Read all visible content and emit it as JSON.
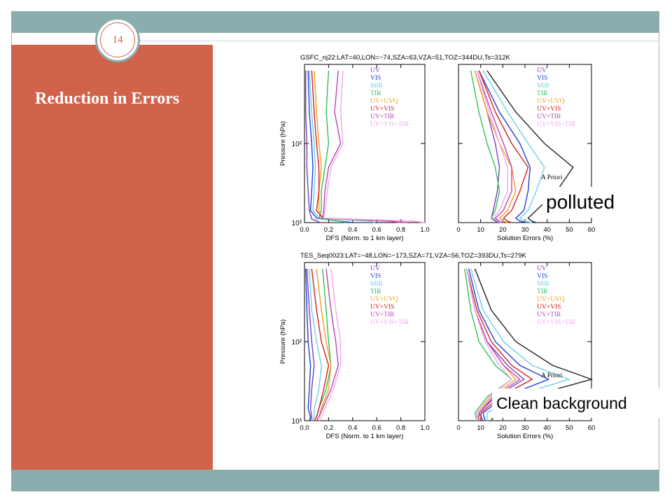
{
  "slide": {
    "number": "14",
    "title": "Reduction in Errors",
    "annotations": {
      "polluted": "polluted",
      "clean": "Clean background"
    }
  },
  "colors": {
    "sidebar": "#d0634a",
    "bars": "#8aaeae",
    "UV": "#7b3fb8",
    "VIS": "#1f3fd6",
    "MIR": "#6fcfe8",
    "TIR": "#2ec25a",
    "UV+UVQ": "#f0a020",
    "UV+VIS": "#d62020",
    "UV+TIR": "#b845b0",
    "UV+VIS+TIR": "#f3a6ee",
    "APriori": "#222222"
  },
  "chart_data": [
    {
      "type": "line",
      "title": "GSFC_nj22:LAT=40,LON=−74,SZA=63,VZA=51,TOZ=344DU,Ts=312K",
      "xlabel": "DFS (Norm. to 1 km layer)",
      "ylabel": "Pressure (hPa)",
      "xlim": [
        0.0,
        1.0
      ],
      "ylim": [
        1000,
        10
      ],
      "ylog": true,
      "xticks": [
        "0.0",
        "0.2",
        "0.4",
        "0.6",
        "0.8",
        "1.0"
      ],
      "yticks": [
        "10²",
        "10³"
      ],
      "legend": [
        "UV",
        "VIS",
        "MIR",
        "TIR",
        "UV+UVQ",
        "UV+VIS",
        "UV+TIR",
        "UV+VIS+TIR"
      ],
      "legend_position": "top-right",
      "series": [
        {
          "name": "UV",
          "color": "#7b3fb8",
          "x": [
            0.01,
            0.01,
            0.02,
            0.02,
            0.03,
            0.04,
            0.06,
            0.12,
            0.12
          ],
          "y": [
            12,
            40,
            100,
            200,
            400,
            700,
            900,
            980,
            1000
          ]
        },
        {
          "name": "VIS",
          "color": "#1f3fd6",
          "x": [
            0.03,
            0.04,
            0.06,
            0.07,
            0.06,
            0.05,
            0.1,
            0.3,
            0.4
          ],
          "y": [
            12,
            40,
            100,
            200,
            400,
            700,
            880,
            960,
            1000
          ]
        },
        {
          "name": "MIR",
          "color": "#6fcfe8",
          "x": [
            0.04,
            0.06,
            0.08,
            0.09,
            0.08,
            0.07,
            0.12,
            0.55,
            0.58
          ],
          "y": [
            12,
            40,
            100,
            200,
            400,
            700,
            880,
            960,
            1000
          ]
        },
        {
          "name": "TIR",
          "color": "#2ec25a",
          "x": [
            0.2,
            0.18,
            0.2,
            0.17,
            0.14,
            0.14,
            0.12,
            0.3,
            0.35
          ],
          "y": [
            12,
            40,
            100,
            200,
            400,
            700,
            880,
            960,
            1000
          ]
        },
        {
          "name": "UV+UVQ",
          "color": "#f0a020",
          "x": [
            0.08,
            0.1,
            0.12,
            0.14,
            0.12,
            0.12,
            0.15,
            0.7,
            0.8
          ],
          "y": [
            12,
            40,
            100,
            200,
            400,
            700,
            880,
            960,
            1000
          ]
        },
        {
          "name": "UV+VIS",
          "color": "#d62020",
          "x": [
            0.06,
            0.08,
            0.1,
            0.12,
            0.12,
            0.1,
            0.15,
            0.9,
            1.0
          ],
          "y": [
            12,
            40,
            100,
            200,
            400,
            700,
            880,
            960,
            1000
          ]
        },
        {
          "name": "UV+TIR",
          "color": "#b845b0",
          "x": [
            0.28,
            0.25,
            0.3,
            0.2,
            0.17,
            0.16,
            0.15,
            0.7,
            0.85
          ],
          "y": [
            12,
            40,
            100,
            200,
            400,
            700,
            880,
            960,
            1000
          ]
        },
        {
          "name": "UV+VIS+TIR",
          "color": "#f3a6ee",
          "x": [
            0.32,
            0.3,
            0.32,
            0.22,
            0.19,
            0.17,
            0.16,
            0.9,
            1.0
          ],
          "y": [
            12,
            40,
            100,
            200,
            400,
            700,
            880,
            960,
            1000
          ]
        }
      ]
    },
    {
      "type": "line",
      "title": "",
      "xlabel": "Solution Errors (%)",
      "ylabel": "",
      "xlim": [
        0,
        65
      ],
      "ylim": [
        1000,
        10
      ],
      "ylog": true,
      "xticks": [
        "0",
        "10",
        "20",
        "30",
        "40",
        "50",
        "60"
      ],
      "legend": [
        "UV",
        "VIS",
        "MIR",
        "TIR",
        "UV+UVQ",
        "UV+VIS",
        "UV+TIR",
        "UV+VIS+TIR",
        "A Priori"
      ],
      "legend_position": "top-right",
      "series": [
        {
          "name": "UV",
          "color": "#7b3fb8",
          "x": [
            8,
            14,
            18,
            20,
            19,
            17,
            16,
            18,
            20
          ],
          "y": [
            12,
            40,
            100,
            200,
            400,
            700,
            880,
            960,
            1000
          ]
        },
        {
          "name": "VIS",
          "color": "#1f3fd6",
          "x": [
            10,
            20,
            30,
            35,
            34,
            32,
            28,
            30,
            34
          ],
          "y": [
            12,
            40,
            100,
            200,
            400,
            700,
            880,
            960,
            1000
          ]
        },
        {
          "name": "MIR",
          "color": "#6fcfe8",
          "x": [
            12,
            24,
            34,
            42,
            38,
            34,
            30,
            32,
            36
          ],
          "y": [
            12,
            40,
            100,
            200,
            400,
            700,
            880,
            960,
            1000
          ]
        },
        {
          "name": "TIR",
          "color": "#2ec25a",
          "x": [
            6,
            10,
            14,
            18,
            20,
            18,
            16,
            20,
            22
          ],
          "y": [
            12,
            40,
            100,
            200,
            400,
            700,
            880,
            960,
            1000
          ]
        },
        {
          "name": "UV+UVQ",
          "color": "#f0a020",
          "x": [
            8,
            14,
            20,
            26,
            28,
            24,
            20,
            22,
            24
          ],
          "y": [
            12,
            40,
            100,
            200,
            400,
            700,
            880,
            960,
            1000
          ]
        },
        {
          "name": "UV+VIS",
          "color": "#d62020",
          "x": [
            10,
            18,
            26,
            34,
            30,
            26,
            22,
            24,
            26
          ],
          "y": [
            12,
            40,
            100,
            200,
            400,
            700,
            880,
            960,
            1000
          ]
        },
        {
          "name": "UV+TIR",
          "color": "#b845b0",
          "x": [
            9,
            16,
            22,
            26,
            26,
            22,
            18,
            20,
            22
          ],
          "y": [
            12,
            40,
            100,
            200,
            400,
            700,
            880,
            960,
            1000
          ]
        },
        {
          "name": "UV+VIS+TIR",
          "color": "#f3a6ee",
          "x": [
            9,
            15,
            20,
            24,
            24,
            20,
            17,
            19,
            21
          ],
          "y": [
            12,
            40,
            100,
            200,
            400,
            700,
            880,
            960,
            1000
          ]
        },
        {
          "name": "A Priori",
          "color": "#222222",
          "x": [
            14,
            28,
            42,
            56,
            48,
            38,
            34,
            36,
            38
          ],
          "y": [
            12,
            40,
            100,
            200,
            400,
            700,
            880,
            960,
            1000
          ]
        }
      ]
    },
    {
      "type": "line",
      "title": "TES_Seq0023:LAT=−48,LON=−173,SZA=71,VZA=56,TOZ=393DU,Ts=279K",
      "xlabel": "DFS (Norm. to 1 km layer)",
      "ylabel": "Pressure (hPa)",
      "xlim": [
        0.0,
        1.0
      ],
      "ylim": [
        1000,
        10
      ],
      "ylog": true,
      "xticks": [
        "0.0",
        "0.2",
        "0.4",
        "0.6",
        "0.8",
        "1.0"
      ],
      "yticks": [
        "10²",
        "10³"
      ],
      "legend": [
        "UV",
        "VIS",
        "MIR",
        "TIR",
        "UV+UVQ",
        "UV+VIS",
        "UV+TIR",
        "UV+VIS+TIR"
      ],
      "legend_position": "top-right",
      "series": [
        {
          "name": "UV",
          "color": "#7b3fb8",
          "x": [
            0.02,
            0.04,
            0.06,
            0.08,
            0.06,
            0.05,
            0.06,
            0.05
          ],
          "y": [
            12,
            40,
            100,
            200,
            400,
            700,
            900,
            1000
          ]
        },
        {
          "name": "VIS",
          "color": "#1f3fd6",
          "x": [
            0.01,
            0.02,
            0.03,
            0.05,
            0.04,
            0.03,
            0.05,
            0.04
          ],
          "y": [
            12,
            40,
            100,
            200,
            400,
            700,
            900,
            1000
          ]
        },
        {
          "name": "MIR",
          "color": "#6fcfe8",
          "x": [
            0.04,
            0.06,
            0.1,
            0.14,
            0.12,
            0.08,
            0.08,
            0.06
          ],
          "y": [
            12,
            40,
            100,
            200,
            400,
            700,
            900,
            1000
          ]
        },
        {
          "name": "TIR",
          "color": "#2ec25a",
          "x": [
            0.15,
            0.18,
            0.2,
            0.22,
            0.18,
            0.12,
            0.1,
            0.08
          ],
          "y": [
            12,
            40,
            100,
            200,
            400,
            700,
            900,
            1000
          ]
        },
        {
          "name": "UV+UVQ",
          "color": "#f0a020",
          "x": [
            0.1,
            0.14,
            0.18,
            0.22,
            0.2,
            0.14,
            0.12,
            0.1
          ],
          "y": [
            12,
            40,
            100,
            200,
            400,
            700,
            900,
            1000
          ]
        },
        {
          "name": "UV+VIS",
          "color": "#d62020",
          "x": [
            0.06,
            0.1,
            0.14,
            0.2,
            0.16,
            0.12,
            0.1,
            0.08
          ],
          "y": [
            12,
            40,
            100,
            200,
            400,
            700,
            900,
            1000
          ]
        },
        {
          "name": "UV+TIR",
          "color": "#b845b0",
          "x": [
            0.18,
            0.22,
            0.26,
            0.28,
            0.22,
            0.15,
            0.12,
            0.1
          ],
          "y": [
            12,
            40,
            100,
            200,
            400,
            700,
            900,
            1000
          ]
        },
        {
          "name": "UV+VIS+TIR",
          "color": "#f3a6ee",
          "x": [
            0.22,
            0.26,
            0.3,
            0.3,
            0.24,
            0.17,
            0.14,
            0.12
          ],
          "y": [
            12,
            40,
            100,
            200,
            400,
            700,
            900,
            1000
          ]
        }
      ]
    },
    {
      "type": "line",
      "title": "",
      "xlabel": "Solution Errors (%)",
      "ylabel": "",
      "xlim": [
        0,
        65
      ],
      "ylim": [
        1000,
        10
      ],
      "ylog": true,
      "xticks": [
        "0",
        "10",
        "20",
        "30",
        "40",
        "50",
        "60"
      ],
      "legend": [
        "UV",
        "VIS",
        "MIR",
        "TIR",
        "UV+UVQ",
        "UV+VIS",
        "UV+TIR",
        "UV+VIS+TIR",
        "A Priori"
      ],
      "legend_position": "top-right",
      "series": [
        {
          "name": "UV",
          "color": "#7b3fb8",
          "x": [
            4,
            8,
            14,
            24,
            32,
            18,
            10,
            12
          ],
          "y": [
            12,
            40,
            100,
            200,
            300,
            500,
            800,
            1000
          ]
        },
        {
          "name": "VIS",
          "color": "#1f3fd6",
          "x": [
            5,
            10,
            18,
            30,
            44,
            22,
            12,
            13
          ],
          "y": [
            12,
            40,
            100,
            200,
            300,
            500,
            800,
            1000
          ]
        },
        {
          "name": "MIR",
          "color": "#6fcfe8",
          "x": [
            6,
            12,
            22,
            36,
            54,
            26,
            14,
            14
          ],
          "y": [
            12,
            40,
            100,
            200,
            300,
            500,
            800,
            1000
          ]
        },
        {
          "name": "TIR",
          "color": "#2ec25a",
          "x": [
            3,
            6,
            10,
            18,
            26,
            14,
            8,
            9
          ],
          "y": [
            12,
            40,
            100,
            200,
            300,
            500,
            800,
            1000
          ]
        },
        {
          "name": "UV+UVQ",
          "color": "#f0a020",
          "x": [
            4,
            8,
            14,
            22,
            28,
            16,
            9,
            10
          ],
          "y": [
            12,
            40,
            100,
            200,
            300,
            500,
            800,
            1000
          ]
        },
        {
          "name": "UV+VIS",
          "color": "#d62020",
          "x": [
            4,
            9,
            16,
            26,
            36,
            20,
            11,
            11
          ],
          "y": [
            12,
            40,
            100,
            200,
            300,
            500,
            800,
            1000
          ]
        },
        {
          "name": "UV+TIR",
          "color": "#b845b0",
          "x": [
            4,
            8,
            14,
            22,
            30,
            17,
            10,
            10
          ],
          "y": [
            12,
            40,
            100,
            200,
            300,
            500,
            800,
            1000
          ]
        },
        {
          "name": "UV+VIS+TIR",
          "color": "#f3a6ee",
          "x": [
            4,
            8,
            13,
            20,
            26,
            15,
            9,
            9
          ],
          "y": [
            12,
            40,
            100,
            200,
            300,
            500,
            800,
            1000
          ]
        },
        {
          "name": "A Priori",
          "color": "#222222",
          "x": [
            8,
            16,
            28,
            46,
            65,
            34,
            18,
            16
          ],
          "y": [
            12,
            40,
            100,
            200,
            300,
            500,
            800,
            1000
          ]
        }
      ]
    }
  ]
}
